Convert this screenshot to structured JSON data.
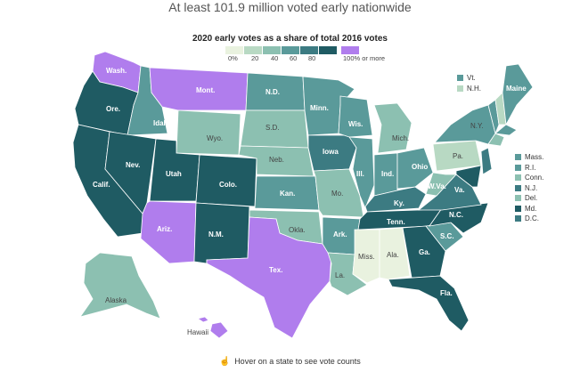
{
  "headline": "At least 101.9 million voted early nationwide",
  "legend": {
    "title": "2020 early votes as a share of total 2016 votes",
    "bins": [
      "0%",
      "20",
      "40",
      "60",
      "80",
      "100% or more"
    ],
    "colors": [
      "#e9f2df",
      "#b8d9c3",
      "#8cc0b1",
      "#5a9a9a",
      "#3c7b82",
      "#1f5b63"
    ],
    "over_color": "#b07ded"
  },
  "states": [
    {
      "abbr": "Wash.",
      "bin": "over"
    },
    {
      "abbr": "Ore.",
      "bin": 5
    },
    {
      "abbr": "Calif.",
      "bin": 5
    },
    {
      "abbr": "Idaho",
      "bin": 3
    },
    {
      "abbr": "Nev.",
      "bin": 5
    },
    {
      "abbr": "Mont.",
      "bin": "over"
    },
    {
      "abbr": "Wyo.",
      "bin": 2
    },
    {
      "abbr": "Utah",
      "bin": 5
    },
    {
      "abbr": "Colo.",
      "bin": 5
    },
    {
      "abbr": "Ariz.",
      "bin": "over"
    },
    {
      "abbr": "N.M.",
      "bin": 5
    },
    {
      "abbr": "N.D.",
      "bin": 3
    },
    {
      "abbr": "S.D.",
      "bin": 2
    },
    {
      "abbr": "Neb.",
      "bin": 2
    },
    {
      "abbr": "Kan.",
      "bin": 3
    },
    {
      "abbr": "Okla.",
      "bin": 2
    },
    {
      "abbr": "Tex.",
      "bin": "over"
    },
    {
      "abbr": "Minn.",
      "bin": 3
    },
    {
      "abbr": "Iowa",
      "bin": 4
    },
    {
      "abbr": "Mo.",
      "bin": 2
    },
    {
      "abbr": "Ark.",
      "bin": 3
    },
    {
      "abbr": "La.",
      "bin": 2
    },
    {
      "abbr": "Wis.",
      "bin": 3
    },
    {
      "abbr": "Ill.",
      "bin": 3
    },
    {
      "abbr": "Mich.",
      "bin": 2
    },
    {
      "abbr": "Ind.",
      "bin": 3
    },
    {
      "abbr": "Ohio",
      "bin": 3
    },
    {
      "abbr": "Ky.",
      "bin": 4
    },
    {
      "abbr": "Tenn.",
      "bin": 5
    },
    {
      "abbr": "Miss.",
      "bin": 0
    },
    {
      "abbr": "Ala.",
      "bin": 0
    },
    {
      "abbr": "Ga.",
      "bin": 5
    },
    {
      "abbr": "Fla.",
      "bin": 5
    },
    {
      "abbr": "S.C.",
      "bin": 3
    },
    {
      "abbr": "N.C.",
      "bin": 5
    },
    {
      "abbr": "Va.",
      "bin": 4
    },
    {
      "abbr": "W.Va.",
      "bin": 2
    },
    {
      "abbr": "Pa.",
      "bin": 1
    },
    {
      "abbr": "N.Y.",
      "bin": 3
    },
    {
      "abbr": "Maine",
      "bin": 3
    },
    {
      "abbr": "Alaska",
      "bin": 2
    },
    {
      "abbr": "Hawaii",
      "bin": "over"
    }
  ],
  "northeast_top": [
    {
      "abbr": "Vt.",
      "bin": 3
    },
    {
      "abbr": "N.H.",
      "bin": 1
    }
  ],
  "northeast_list": [
    {
      "abbr": "Mass.",
      "bin": 3
    },
    {
      "abbr": "R.I.",
      "bin": 3
    },
    {
      "abbr": "Conn.",
      "bin": 2
    },
    {
      "abbr": "N.J.",
      "bin": 4
    },
    {
      "abbr": "Del.",
      "bin": 2
    },
    {
      "abbr": "Md.",
      "bin": 5
    },
    {
      "abbr": "D.C.",
      "bin": 4
    }
  ],
  "footer": {
    "icon": "hand-pointer-icon",
    "text": "Hover on a state to see vote counts"
  }
}
